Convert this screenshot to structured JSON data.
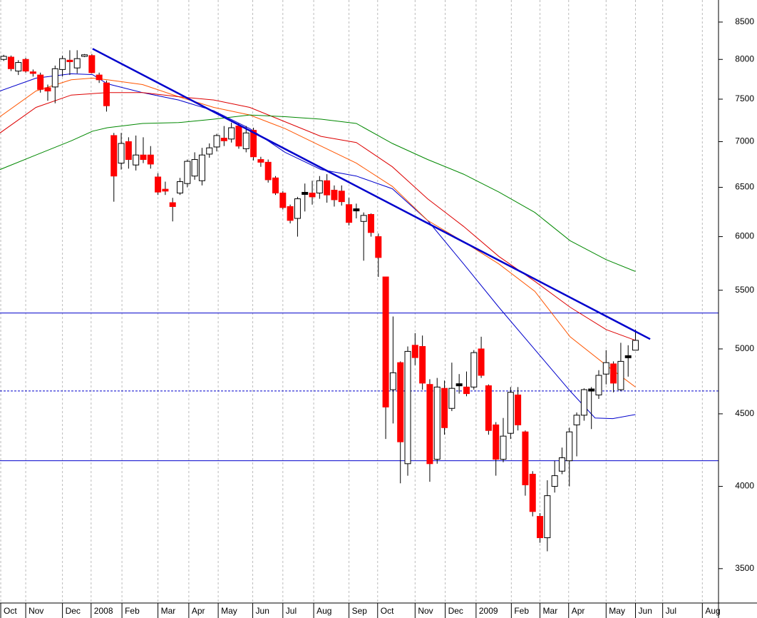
{
  "chart_data": {
    "type": "candlestick",
    "log_scale": true,
    "ylim": [
      3310,
      8810
    ],
    "yticks": [
      3500,
      4000,
      4500,
      5000,
      5500,
      6000,
      6500,
      7000,
      7500,
      8000,
      8500
    ],
    "xlim": [
      -0.5,
      97.3
    ],
    "xticks": [
      {
        "value": -0.4,
        "label": "Oct"
      },
      {
        "value": 3.0,
        "label": "Nov"
      },
      {
        "value": 8.0,
        "label": "Dec"
      },
      {
        "value": 11.9,
        "label": "2008"
      },
      {
        "value": 16.1,
        "label": "Feb"
      },
      {
        "value": 21.0,
        "label": "Mar"
      },
      {
        "value": 25.2,
        "label": "Apr"
      },
      {
        "value": 29.2,
        "label": "May"
      },
      {
        "value": 33.9,
        "label": "Jun"
      },
      {
        "value": 38.0,
        "label": "Jul"
      },
      {
        "value": 42.2,
        "label": "Aug"
      },
      {
        "value": 47.0,
        "label": "Sep"
      },
      {
        "value": 50.9,
        "label": "Oct"
      },
      {
        "value": 56.0,
        "label": "Nov"
      },
      {
        "value": 60.1,
        "label": "Dec"
      },
      {
        "value": 64.3,
        "label": "2009"
      },
      {
        "value": 69.1,
        "label": "Feb"
      },
      {
        "value": 73.0,
        "label": "Mar"
      },
      {
        "value": 76.9,
        "label": "Apr"
      },
      {
        "value": 82.0,
        "label": "May"
      },
      {
        "value": 86.0,
        "label": "Jun"
      },
      {
        "value": 89.7,
        "label": "Jul"
      },
      {
        "value": 95.1,
        "label": "Aug"
      }
    ],
    "grid": true,
    "up_color": "#ffffff",
    "down_color": "#ff0000",
    "candles": {
      "open": [
        8000,
        8030,
        7850,
        8000,
        7840,
        7800,
        7640,
        7650,
        7870,
        7990,
        7890,
        8040,
        8050,
        7800,
        7700,
        7070,
        6760,
        7000,
        6740,
        6850,
        6850,
        6610,
        6480,
        6340,
        6440,
        6540,
        6620,
        6570,
        6860,
        6940,
        7040,
        7030,
        7180,
        6920,
        7130,
        6800,
        6770,
        6600,
        6440,
        6300,
        6180,
        6440,
        6440,
        6440,
        6570,
        6470,
        6460,
        6320,
        6270,
        6150,
        6220,
        6000,
        5620,
        4680,
        4890,
        4150,
        5030,
        5020,
        4720,
        4180,
        4690,
        4540,
        4720,
        4700,
        4700,
        5000,
        4710,
        4420,
        4180,
        4360,
        4640,
        4370,
        4080,
        3810,
        3680,
        4000,
        4100,
        4170,
        4420,
        4490,
        4680,
        4640,
        4800,
        4880,
        4680,
        4930,
        4990
      ],
      "high": [
        8060,
        8050,
        7990,
        8020,
        7870,
        7830,
        7680,
        7920,
        8050,
        8120,
        8120,
        8070,
        8070,
        7830,
        7730,
        7100,
        7100,
        7050,
        7070,
        7050,
        6950,
        6650,
        6560,
        6390,
        6600,
        6800,
        6880,
        6930,
        6980,
        7090,
        7180,
        7220,
        7210,
        7180,
        7160,
        6830,
        6800,
        6620,
        6460,
        6320,
        6400,
        6540,
        6570,
        6620,
        6640,
        6520,
        6520,
        6390,
        6330,
        6240,
        6230,
        6030,
        5620,
        5270,
        4900,
        5020,
        5130,
        5110,
        4760,
        4770,
        4750,
        4890,
        4800,
        4820,
        4990,
        5100,
        4720,
        4440,
        4470,
        4700,
        4700,
        4380,
        4100,
        3830,
        4040,
        4170,
        4260,
        4400,
        4510,
        4690,
        4700,
        4830,
        4990,
        4900,
        5050,
        5030,
        5160
      ],
      "low": [
        7980,
        7850,
        7800,
        7830,
        7780,
        7580,
        7480,
        7450,
        7780,
        7800,
        7820,
        8030,
        7820,
        7700,
        7350,
        6350,
        6690,
        6700,
        6680,
        6760,
        6700,
        6420,
        6420,
        6150,
        6420,
        6500,
        6580,
        6520,
        6820,
        6890,
        6950,
        6990,
        6920,
        6880,
        6790,
        6720,
        6550,
        6420,
        6270,
        6130,
        6000,
        6250,
        6320,
        6380,
        6340,
        6300,
        6310,
        6110,
        6180,
        5770,
        6000,
        5620,
        4320,
        4430,
        4020,
        4070,
        4870,
        4680,
        4030,
        4150,
        4350,
        4520,
        4650,
        4630,
        4680,
        4770,
        4350,
        4070,
        4160,
        4320,
        4380,
        3940,
        3810,
        3650,
        3600,
        3960,
        4080,
        4000,
        4200,
        4450,
        4390,
        4610,
        4720,
        4660,
        4670,
        4780,
        4990
      ],
      "close": [
        8040,
        7880,
        7960,
        7850,
        7820,
        7620,
        7600,
        7880,
        8010,
        7970,
        8010,
        8060,
        7830,
        7740,
        7420,
        6620,
        6980,
        6800,
        6850,
        6800,
        6750,
        6450,
        6460,
        6300,
        6560,
        6780,
        6800,
        6850,
        6930,
        7070,
        7010,
        7160,
        6950,
        7100,
        6830,
        6770,
        6580,
        6440,
        6290,
        6160,
        6380,
        6430,
        6400,
        6570,
        6420,
        6370,
        6350,
        6140,
        6260,
        6210,
        6040,
        5800,
        4550,
        4810,
        4300,
        4980,
        4930,
        4730,
        4150,
        4700,
        4400,
        4690,
        4710,
        4650,
        4970,
        4790,
        4380,
        4180,
        4340,
        4660,
        4420,
        4010,
        3840,
        3680,
        3940,
        4070,
        4190,
        4370,
        4490,
        4680,
        4670,
        4790,
        4890,
        4730,
        4900,
        4940,
        5070
      ]
    },
    "series": [
      {
        "color": "#0000cc",
        "x": [
          -0.5,
          4.4,
          9.2,
          12.1,
          14.1,
          18.9,
          23.8,
          28.6,
          33.5,
          38.3,
          43.2,
          48.0,
          52.9,
          57.7,
          62.6,
          67.4,
          72.3,
          77.1,
          80.5,
          82.9,
          86.0
        ],
        "values": [
          7600,
          7760,
          7815,
          7805,
          7690,
          7580,
          7490,
          7360,
          7150,
          6880,
          6690,
          6620,
          6485,
          6160,
          5740,
          5350,
          4995,
          4670,
          4470,
          4465,
          4495
        ]
      },
      {
        "color": "#ff5500",
        "x": [
          -0.5,
          4.4,
          9.2,
          12.1,
          14.1,
          18.9,
          23.8,
          28.6,
          33.5,
          38.3,
          43.2,
          48.0,
          52.9,
          57.7,
          62.6,
          67.4,
          72.3,
          77.1,
          82.0,
          86.0
        ],
        "values": [
          7290,
          7600,
          7740,
          7760,
          7740,
          7680,
          7530,
          7400,
          7310,
          7150,
          6950,
          6760,
          6510,
          6160,
          5950,
          5740,
          5490,
          5100,
          4870,
          4700
        ]
      },
      {
        "color": "#dd0000",
        "x": [
          -0.5,
          4.4,
          9.2,
          14.1,
          18.9,
          23.8,
          28.6,
          33.5,
          38.3,
          43.2,
          48.0,
          52.9,
          57.7,
          62.6,
          67.4,
          72.3,
          77.1,
          82.0,
          86.0
        ],
        "values": [
          7100,
          7400,
          7550,
          7580,
          7580,
          7530,
          7490,
          7400,
          7230,
          7060,
          6990,
          6720,
          6380,
          6100,
          5810,
          5580,
          5350,
          5160,
          5070
        ]
      },
      {
        "color": "#008800",
        "x": [
          -0.5,
          4.4,
          9.2,
          12.1,
          14.1,
          18.9,
          23.8,
          28.6,
          33.5,
          38.3,
          43.2,
          48.0,
          52.9,
          57.7,
          62.6,
          67.4,
          72.3,
          77.1,
          82.0,
          86.0
        ],
        "values": [
          6690,
          6850,
          7010,
          7120,
          7160,
          7210,
          7220,
          7260,
          7310,
          7290,
          7260,
          7210,
          6980,
          6800,
          6640,
          6450,
          6240,
          5960,
          5780,
          5670
        ]
      }
    ],
    "trendline": {
      "color": "#0000cc",
      "x": [
        12.1,
        88.0
      ],
      "values": [
        8140,
        5080
      ]
    },
    "hlines": [
      {
        "value": 5300,
        "color": "#0000cc",
        "dashed": false
      },
      {
        "value": 4670,
        "color": "#0000cc",
        "dashed": true
      },
      {
        "value": 4170,
        "color": "#0000cc",
        "dashed": false
      }
    ]
  }
}
